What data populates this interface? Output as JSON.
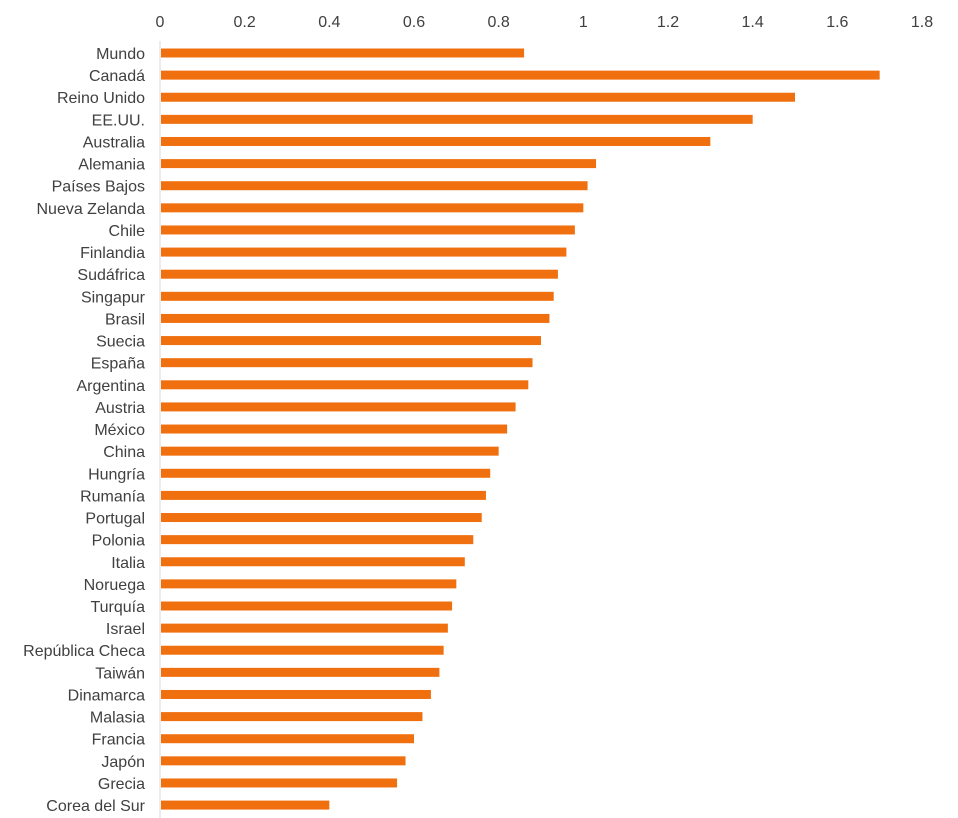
{
  "chart_data": {
    "type": "bar",
    "orientation": "horizontal",
    "title": "",
    "xlabel": "",
    "ylabel": "",
    "xlim": [
      0,
      1.8
    ],
    "x_ticks": [
      "0",
      "0.2",
      "0.4",
      "0.6",
      "0.8",
      "1",
      "1.2",
      "1.4",
      "1.6",
      "1.8"
    ],
    "x_axis_position": "top",
    "grid": false,
    "bar_color": "#F07010",
    "categories": [
      "Mundo",
      "Canadá",
      "Reino Unido",
      "EE.UU.",
      "Australia",
      "Alemania",
      "Países Bajos",
      "Nueva Zelanda",
      "Chile",
      "Finlandia",
      "Sudáfrica",
      "Singapur",
      "Brasil",
      "Suecia",
      "España",
      "Argentina",
      "Austria",
      "México",
      "China",
      "Hungría",
      "Rumanía",
      "Portugal",
      "Polonia",
      "Italia",
      "Noruega",
      "Turquía",
      "Israel",
      "República Checa",
      "Taiwán",
      "Dinamarca",
      "Malasia",
      "Francia",
      "Japón",
      "Grecia",
      "Corea del Sur"
    ],
    "values": [
      0.86,
      1.7,
      1.5,
      1.4,
      1.3,
      1.03,
      1.01,
      1.0,
      0.98,
      0.96,
      0.94,
      0.93,
      0.92,
      0.9,
      0.88,
      0.87,
      0.84,
      0.82,
      0.8,
      0.78,
      0.77,
      0.76,
      0.74,
      0.72,
      0.7,
      0.69,
      0.68,
      0.67,
      0.66,
      0.64,
      0.62,
      0.6,
      0.58,
      0.56,
      0.4
    ]
  }
}
